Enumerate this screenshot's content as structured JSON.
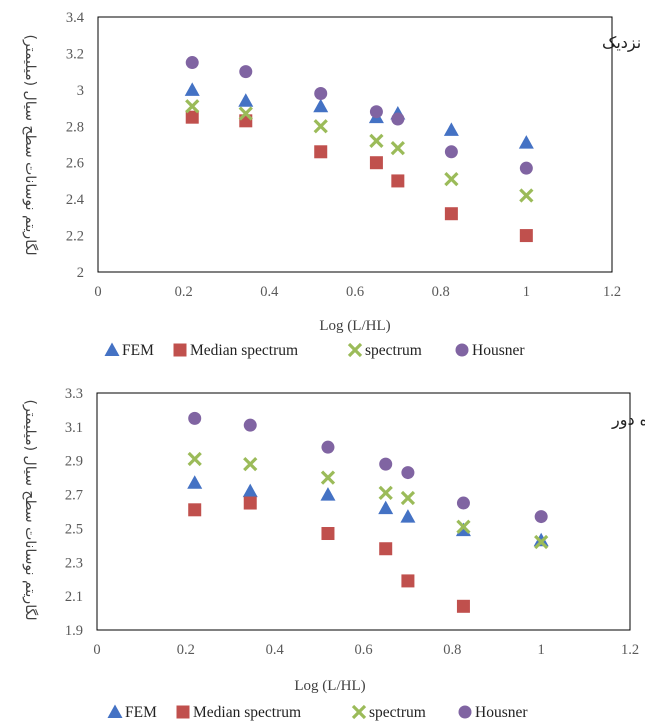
{
  "chart_data": [
    {
      "type": "scatter",
      "title": "زلزله های حوزه نزدیک",
      "xlabel": "Log (L/HL)",
      "ylabel": "لگاریتم نوسانات سطح سیال (میلیمتر)",
      "xlim": [
        0,
        1.2
      ],
      "ylim": [
        2,
        3.4
      ],
      "x_ticks": [
        "0",
        "0.2",
        "0.4",
        "0.6",
        "0.8",
        "1",
        "1.2"
      ],
      "y_ticks": [
        "2",
        "2.2",
        "2.4",
        "2.6",
        "2.8",
        "3",
        "3.2",
        "3.4"
      ],
      "legend_position": "bottom",
      "series": [
        {
          "name": "FEM",
          "marker": "triangle",
          "color": "#4472C4",
          "x": [
            0.22,
            0.345,
            0.52,
            0.65,
            0.7,
            0.825,
            1.0
          ],
          "y": [
            3.0,
            2.94,
            2.91,
            2.85,
            2.87,
            2.78,
            2.71
          ]
        },
        {
          "name": "Median spectrum",
          "marker": "square",
          "color": "#C0504D",
          "x": [
            0.22,
            0.345,
            0.52,
            0.65,
            0.7,
            0.825,
            1.0
          ],
          "y": [
            2.85,
            2.83,
            2.66,
            2.6,
            2.5,
            2.32,
            2.2
          ]
        },
        {
          "name": "spectrum",
          "marker": "x",
          "color": "#9BBB59",
          "x": [
            0.22,
            0.345,
            0.52,
            0.65,
            0.7,
            0.825,
            1.0
          ],
          "y": [
            2.91,
            2.87,
            2.8,
            2.72,
            2.68,
            2.51,
            2.42
          ]
        },
        {
          "name": "Housner",
          "marker": "circle",
          "color": "#8064A2",
          "x": [
            0.22,
            0.345,
            0.52,
            0.65,
            0.7,
            0.825,
            1.0
          ],
          "y": [
            3.15,
            3.1,
            2.98,
            2.88,
            2.84,
            2.66,
            2.57
          ]
        }
      ]
    },
    {
      "type": "scatter",
      "title": "زلزله های حوزه دور",
      "xlabel": "Log (L/HL)",
      "ylabel": "لگاریتم نوسانات سطح سیال (میلیمتر)",
      "xlim": [
        0,
        1.2
      ],
      "ylim": [
        1.9,
        3.3
      ],
      "x_ticks": [
        "0",
        "0.2",
        "0.4",
        "0.6",
        "0.8",
        "1",
        "1.2"
      ],
      "y_ticks": [
        "1.9",
        "2.1",
        "2.3",
        "2.5",
        "2.7",
        "2.9",
        "3.1",
        "3.3"
      ],
      "legend_position": "bottom",
      "series": [
        {
          "name": "FEM",
          "marker": "triangle",
          "color": "#4472C4",
          "x": [
            0.22,
            0.345,
            0.52,
            0.65,
            0.7,
            0.825,
            1.0
          ],
          "y": [
            2.77,
            2.72,
            2.7,
            2.62,
            2.57,
            2.49,
            2.43
          ]
        },
        {
          "name": "Median spectrum",
          "marker": "square",
          "color": "#C0504D",
          "x": [
            0.22,
            0.345,
            0.52,
            0.65,
            0.7,
            0.825
          ],
          "y": [
            2.61,
            2.65,
            2.47,
            2.38,
            2.19,
            2.04
          ]
        },
        {
          "name": "spectrum",
          "marker": "x",
          "color": "#9BBB59",
          "x": [
            0.22,
            0.345,
            0.52,
            0.65,
            0.7,
            0.825,
            1.0
          ],
          "y": [
            2.91,
            2.88,
            2.8,
            2.71,
            2.68,
            2.51,
            2.42
          ]
        },
        {
          "name": "Housner",
          "marker": "circle",
          "color": "#8064A2",
          "x": [
            0.22,
            0.345,
            0.52,
            0.65,
            0.7,
            0.825,
            1.0
          ],
          "y": [
            3.15,
            3.11,
            2.98,
            2.88,
            2.83,
            2.65,
            2.57
          ]
        }
      ]
    }
  ]
}
